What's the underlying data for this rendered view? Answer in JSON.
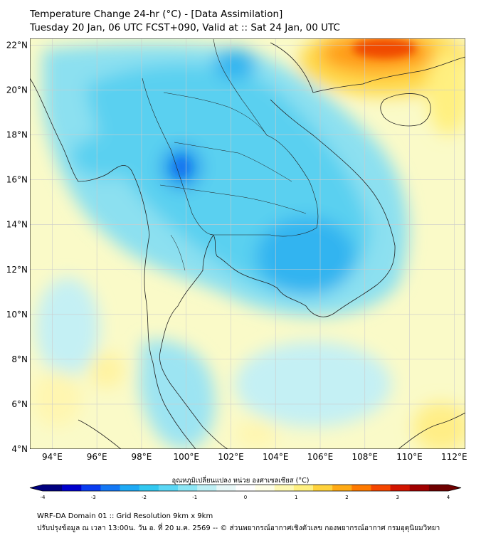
{
  "title_line1": "Temperature Change 24-hr (°C) - [Data Assimilation]",
  "title_line2": "Tuesday 20 Jan, 06 UTC FCST+090, Valid at :: Sat 24 Jan, 00 UTC",
  "lat_labels": [
    {
      "value": 22,
      "text": "22°N"
    },
    {
      "value": 20,
      "text": "20°N"
    },
    {
      "value": 18,
      "text": "18°N"
    },
    {
      "value": 16,
      "text": "16°N"
    },
    {
      "value": 14,
      "text": "14°N"
    },
    {
      "value": 12,
      "text": "12°N"
    },
    {
      "value": 10,
      "text": "10°N"
    },
    {
      "value": 8,
      "text": "8°N"
    },
    {
      "value": 6,
      "text": "6°N"
    },
    {
      "value": 4,
      "text": "4°N"
    }
  ],
  "lon_labels": [
    {
      "value": 94,
      "text": "94°E"
    },
    {
      "value": 96,
      "text": "96°E"
    },
    {
      "value": 98,
      "text": "98°E"
    },
    {
      "value": 100,
      "text": "100°E"
    },
    {
      "value": 102,
      "text": "102°E"
    },
    {
      "value": 104,
      "text": "104°E"
    },
    {
      "value": 106,
      "text": "106°E"
    },
    {
      "value": 108,
      "text": "108°E"
    },
    {
      "value": 110,
      "text": "110°E"
    },
    {
      "value": 112,
      "text": "112°E"
    }
  ],
  "extent": {
    "lon_min": 93,
    "lon_max": 112.5,
    "lat_min": 4,
    "lat_max": 22.3
  },
  "colorbar": {
    "title": "อุณหภูมิเปลี่ยนแปลง หน่วย องศาเซลเซียส (°C)",
    "min": -4,
    "max": 4,
    "ticks": [
      {
        "value": -4,
        "text": "-4"
      },
      {
        "value": -3,
        "text": "-3"
      },
      {
        "value": -2,
        "text": "-2"
      },
      {
        "value": -1,
        "text": "-1"
      },
      {
        "value": 0,
        "text": "0"
      },
      {
        "value": 1,
        "text": "1"
      },
      {
        "value": 2,
        "text": "2"
      },
      {
        "value": 3,
        "text": "3"
      },
      {
        "value": 4,
        "text": "4"
      }
    ],
    "colors": [
      "#00007f",
      "#0000cc",
      "#0a3cf0",
      "#1478f5",
      "#1eaaf5",
      "#32c8f0",
      "#5ad7f5",
      "#8ce6f5",
      "#bef0f5",
      "#e8f8f8",
      "#ffffff",
      "#ffffe6",
      "#fffab4",
      "#fff080",
      "#ffd23c",
      "#ffaa14",
      "#ff7a00",
      "#f54600",
      "#d21400",
      "#a00000",
      "#6e0000"
    ]
  },
  "footer_line1": "WRF-DA Domain 01 :: Grid Resolution 9km x 9km",
  "footer_line2": "ปรับปรุงข้อมูล ณ เวลา 13:00น. วัน อ. ที่ 20 ม.ค. 2569 -- © ส่วนพยากรณ์อากาศเชิงตัวเลข กองพยากรณ์อากาศ กรมอุตุนิยมวิทยา",
  "colors": {
    "background_field": "#fafac8",
    "land_outline": "#222222",
    "grid": "#cccccc"
  }
}
